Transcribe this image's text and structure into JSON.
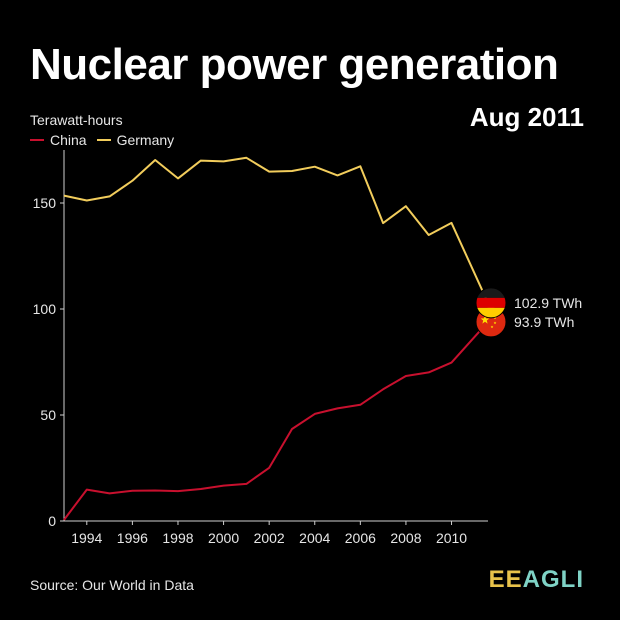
{
  "title": "Nuclear power generation",
  "date": "Aug 2011",
  "source": "Source: Our World in Data",
  "brand": {
    "part1": "EE",
    "part2": "AGLI"
  },
  "chart_data": {
    "type": "line",
    "ylabel": "Terawatt-hours",
    "ylim": [
      0,
      175
    ],
    "yticks": [
      0,
      50,
      100,
      150
    ],
    "xlim": [
      1993,
      2011.6
    ],
    "xticks": [
      1994,
      1996,
      1998,
      2000,
      2002,
      2004,
      2006,
      2008,
      2010
    ],
    "grid": false,
    "legend_position": "top-left",
    "series": [
      {
        "name": "China",
        "color": "#c8102e",
        "end_label": "93.9 TWh",
        "flag": "china",
        "x": [
          1993,
          1994,
          1995,
          1996,
          1997,
          1998,
          1999,
          2000,
          2001,
          2002,
          2003,
          2004,
          2005,
          2006,
          2007,
          2008,
          2009,
          2010,
          2011.6
        ],
        "values": [
          0.5,
          14.8,
          13.0,
          14.3,
          14.4,
          14.1,
          15.1,
          16.7,
          17.5,
          25.1,
          43.4,
          50.5,
          53.1,
          54.8,
          62.1,
          68.4,
          70.1,
          74.7,
          93.9
        ]
      },
      {
        "name": "Germany",
        "color": "#f2cd5c",
        "end_label": "102.9 TWh",
        "flag": "germany",
        "x": [
          1993,
          1994,
          1995,
          1996,
          1997,
          1998,
          1999,
          2000,
          2001,
          2002,
          2003,
          2004,
          2005,
          2006,
          2007,
          2008,
          2009,
          2010,
          2011.6
        ],
        "values": [
          153.5,
          151.2,
          153.1,
          160.5,
          170.3,
          161.6,
          170.0,
          169.6,
          171.3,
          164.8,
          165.1,
          167.1,
          163.0,
          167.3,
          140.5,
          148.5,
          134.9,
          140.6,
          102.9
        ]
      }
    ]
  }
}
